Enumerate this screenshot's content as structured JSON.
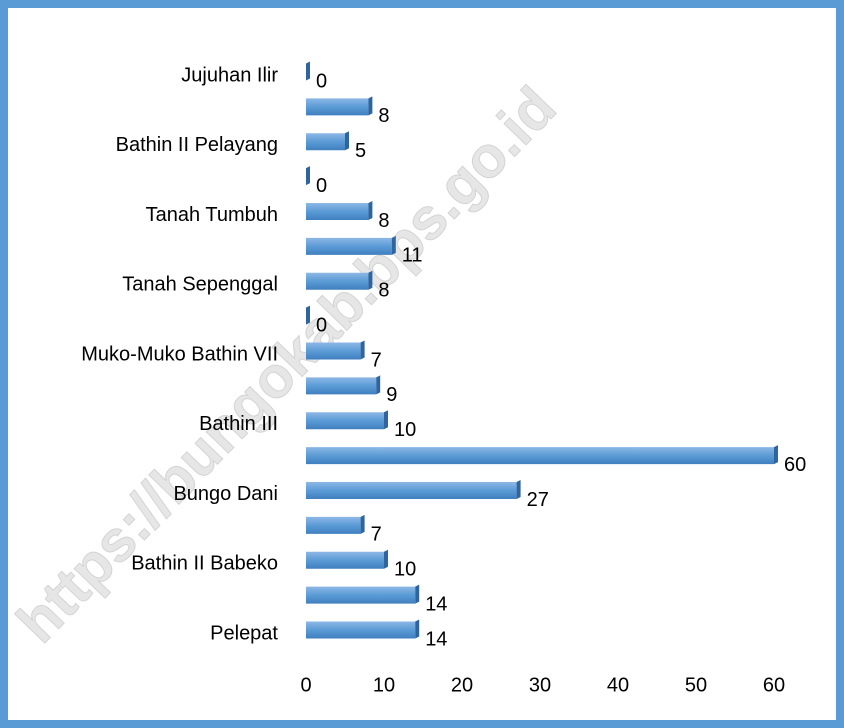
{
  "watermark": "https://bungokab.bps.go.id",
  "chart_data": {
    "type": "hbar",
    "categories": [
      "Jujuhan Ilir",
      null,
      "Bathin II Pelayang",
      null,
      "Tanah Tumbuh",
      null,
      "Tanah Sepenggal",
      null,
      "Muko-Muko Bathin VII",
      null,
      "Bathin III",
      null,
      "Bungo Dani",
      null,
      "Bathin II Babeko",
      null,
      "Pelepat"
    ],
    "values": [
      0,
      8,
      5,
      0,
      8,
      11,
      8,
      0,
      7,
      9,
      10,
      60,
      27,
      7,
      10,
      14,
      14
    ],
    "color": "#5b9bd5",
    "xlim": [
      0,
      60
    ],
    "xticks": [
      0,
      10,
      20,
      30,
      40,
      50,
      60
    ],
    "grid": false
  }
}
